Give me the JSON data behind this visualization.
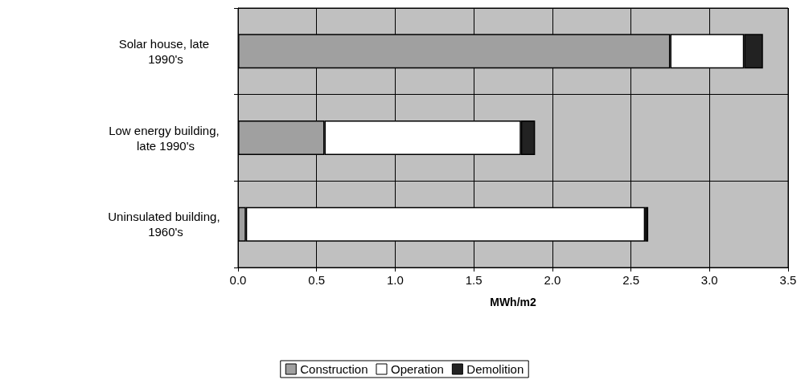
{
  "chart_data": {
    "type": "bar",
    "orientation": "horizontal",
    "stacked": true,
    "xlabel": "MWh/m2",
    "categories": [
      "Solar house, late 1990's",
      "Low energy building, late 1990's",
      "Uninsulated building, 1960's"
    ],
    "series": [
      {
        "name": "Construction",
        "color": "#a0a0a0",
        "values": [
          2.75,
          0.55,
          0.05
        ]
      },
      {
        "name": "Operation",
        "color": "#ffffff",
        "values": [
          0.47,
          1.25,
          2.54
        ]
      },
      {
        "name": "Demolition",
        "color": "#222222",
        "values": [
          0.12,
          0.09,
          0.02
        ]
      }
    ],
    "xlim": [
      0,
      3.5
    ],
    "xticks": [
      {
        "value": 0,
        "label": "0.0"
      },
      0.5,
      {
        "value": 1,
        "label": "1.0"
      },
      1.5,
      {
        "value": 2,
        "label": "2.0"
      },
      2.5,
      {
        "value": 3,
        "label": "3.0"
      },
      3.5
    ],
    "grid": true,
    "legend": "bottom"
  }
}
